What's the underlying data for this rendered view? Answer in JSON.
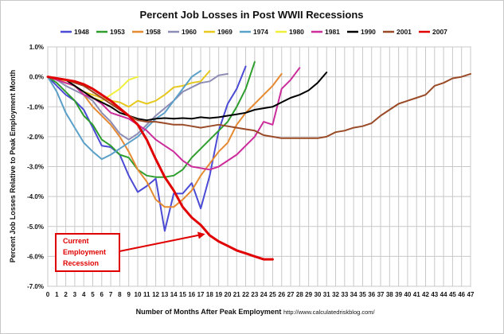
{
  "chart_data": {
    "type": "line",
    "title": "Percent Job Losses in Post WWII Recessions",
    "xlabel": "Number of Months After Peak Employment",
    "ylabel": "Percent Job Losses Relative to Peak Employment Month",
    "source": "http://www.calculatedriskblog.com/",
    "xlim": [
      0,
      47
    ],
    "ylim": [
      -7,
      1
    ],
    "x_ticks": [
      0,
      1,
      2,
      3,
      4,
      5,
      6,
      7,
      8,
      9,
      10,
      11,
      12,
      13,
      14,
      15,
      16,
      17,
      18,
      19,
      20,
      21,
      22,
      23,
      24,
      25,
      26,
      27,
      28,
      29,
      30,
      31,
      32,
      33,
      34,
      35,
      36,
      37,
      38,
      39,
      40,
      41,
      42,
      43,
      44,
      45,
      46,
      47
    ],
    "y_ticks": [
      1,
      0,
      -1,
      -2,
      -3,
      -4,
      -5,
      -6,
      -7
    ],
    "y_tick_labels": [
      "1.0%",
      "0.0%",
      "-1.0%",
      "-2.0%",
      "-3.0%",
      "-4.0%",
      "-5.0%",
      "-6.0%",
      "-7.0%"
    ],
    "grid": true,
    "legend_position": "top",
    "annotation": {
      "lines": [
        "Current",
        "Employment",
        "Recession"
      ],
      "color": "#e00000",
      "arrow_target": {
        "x": 17.5,
        "y": -5.25
      }
    },
    "series": [
      {
        "name": "1948",
        "color": "#4b4bd6",
        "width": 2,
        "values": [
          [
            0,
            0
          ],
          [
            1,
            -0.3
          ],
          [
            2,
            -0.6
          ],
          [
            3,
            -0.8
          ],
          [
            4,
            -1.1
          ],
          [
            5,
            -1.7
          ],
          [
            6,
            -2.3
          ],
          [
            7,
            -2.35
          ],
          [
            8,
            -2.6
          ],
          [
            9,
            -3.3
          ],
          [
            10,
            -3.85
          ],
          [
            11,
            -3.65
          ],
          [
            12,
            -3.4
          ],
          [
            13,
            -5.15
          ],
          [
            14,
            -3.9
          ],
          [
            15,
            -3.9
          ],
          [
            16,
            -3.55
          ],
          [
            17,
            -4.4
          ],
          [
            18,
            -3.3
          ],
          [
            19,
            -1.8
          ],
          [
            20,
            -0.9
          ],
          [
            21,
            -0.4
          ],
          [
            22,
            0.35
          ]
        ]
      },
      {
        "name": "1953",
        "color": "#2e9e2e",
        "width": 2,
        "values": [
          [
            0,
            0
          ],
          [
            1,
            -0.2
          ],
          [
            2,
            -0.5
          ],
          [
            3,
            -0.8
          ],
          [
            4,
            -1.3
          ],
          [
            5,
            -1.6
          ],
          [
            6,
            -2.1
          ],
          [
            7,
            -2.3
          ],
          [
            8,
            -2.6
          ],
          [
            9,
            -2.7
          ],
          [
            10,
            -3.1
          ],
          [
            11,
            -3.3
          ],
          [
            12,
            -3.35
          ],
          [
            13,
            -3.35
          ],
          [
            14,
            -3.3
          ],
          [
            15,
            -3.1
          ],
          [
            16,
            -2.7
          ],
          [
            17,
            -2.4
          ],
          [
            18,
            -2.1
          ],
          [
            19,
            -1.8
          ],
          [
            20,
            -1.5
          ],
          [
            21,
            -1.0
          ],
          [
            22,
            -0.4
          ],
          [
            23,
            0.5
          ]
        ]
      },
      {
        "name": "1958",
        "color": "#e68a32",
        "width": 2,
        "values": [
          [
            0,
            0
          ],
          [
            1,
            -0.1
          ],
          [
            2,
            -0.2
          ],
          [
            3,
            -0.3
          ],
          [
            4,
            -0.6
          ],
          [
            5,
            -1.0
          ],
          [
            6,
            -1.3
          ],
          [
            7,
            -1.6
          ],
          [
            8,
            -2.0
          ],
          [
            9,
            -2.5
          ],
          [
            10,
            -3.1
          ],
          [
            11,
            -3.5
          ],
          [
            12,
            -4.1
          ],
          [
            13,
            -4.35
          ],
          [
            14,
            -4.35
          ],
          [
            15,
            -4.1
          ],
          [
            16,
            -3.8
          ],
          [
            17,
            -3.3
          ],
          [
            18,
            -2.9
          ],
          [
            19,
            -2.5
          ],
          [
            20,
            -2.2
          ],
          [
            21,
            -1.6
          ],
          [
            22,
            -1.2
          ],
          [
            23,
            -0.9
          ],
          [
            24,
            -0.6
          ],
          [
            25,
            -0.3
          ],
          [
            26,
            0.1
          ]
        ]
      },
      {
        "name": "1960",
        "color": "#8c8cb4",
        "width": 2,
        "values": [
          [
            0,
            0
          ],
          [
            1,
            -0.1
          ],
          [
            2,
            -0.3
          ],
          [
            3,
            -0.45
          ],
          [
            4,
            -0.6
          ],
          [
            5,
            -0.8
          ],
          [
            6,
            -1.2
          ],
          [
            7,
            -1.5
          ],
          [
            8,
            -1.9
          ],
          [
            9,
            -2.1
          ],
          [
            10,
            -1.9
          ],
          [
            11,
            -1.6
          ],
          [
            12,
            -1.3
          ],
          [
            13,
            -1.05
          ],
          [
            14,
            -0.8
          ],
          [
            15,
            -0.5
          ],
          [
            16,
            -0.35
          ],
          [
            17,
            -0.2
          ],
          [
            18,
            -0.15
          ],
          [
            19,
            0.05
          ],
          [
            20,
            0.1
          ]
        ]
      },
      {
        "name": "1969",
        "color": "#e6c81e",
        "width": 2,
        "values": [
          [
            0,
            0
          ],
          [
            1,
            -0.05
          ],
          [
            2,
            -0.2
          ],
          [
            3,
            -0.3
          ],
          [
            4,
            -0.5
          ],
          [
            5,
            -0.6
          ],
          [
            6,
            -0.7
          ],
          [
            7,
            -0.8
          ],
          [
            8,
            -0.85
          ],
          [
            9,
            -1.0
          ],
          [
            10,
            -0.8
          ],
          [
            11,
            -0.9
          ],
          [
            12,
            -0.8
          ],
          [
            13,
            -0.6
          ],
          [
            14,
            -0.35
          ],
          [
            15,
            -0.3
          ],
          [
            16,
            -0.2
          ],
          [
            17,
            -0.15
          ],
          [
            18,
            0.2
          ]
        ]
      },
      {
        "name": "1974",
        "color": "#5aa0c8",
        "width": 2,
        "values": [
          [
            0,
            0
          ],
          [
            1,
            -0.5
          ],
          [
            2,
            -1.2
          ],
          [
            3,
            -1.7
          ],
          [
            4,
            -2.2
          ],
          [
            5,
            -2.5
          ],
          [
            6,
            -2.75
          ],
          [
            7,
            -2.6
          ],
          [
            8,
            -2.4
          ],
          [
            9,
            -2.2
          ],
          [
            10,
            -2.0
          ],
          [
            11,
            -1.7
          ],
          [
            12,
            -1.4
          ],
          [
            13,
            -1.2
          ],
          [
            14,
            -0.8
          ],
          [
            15,
            -0.4
          ],
          [
            16,
            0.0
          ],
          [
            17,
            0.2
          ]
        ]
      },
      {
        "name": "1980",
        "color": "#f0f03c",
        "width": 2,
        "values": [
          [
            0,
            0
          ],
          [
            1,
            -0.05
          ],
          [
            2,
            -0.2
          ],
          [
            3,
            -0.3
          ],
          [
            4,
            -0.5
          ],
          [
            5,
            -0.7
          ],
          [
            6,
            -0.8
          ],
          [
            7,
            -0.6
          ],
          [
            8,
            -0.4
          ],
          [
            9,
            -0.1
          ],
          [
            10,
            0.0
          ]
        ]
      },
      {
        "name": "1981",
        "color": "#cc2d9b",
        "width": 2,
        "values": [
          [
            0,
            0
          ],
          [
            1,
            -0.1
          ],
          [
            2,
            -0.2
          ],
          [
            3,
            -0.3
          ],
          [
            4,
            -0.6
          ],
          [
            5,
            -0.7
          ],
          [
            6,
            -0.9
          ],
          [
            7,
            -1.2
          ],
          [
            8,
            -1.3
          ],
          [
            9,
            -1.4
          ],
          [
            10,
            -1.6
          ],
          [
            11,
            -1.8
          ],
          [
            12,
            -2.1
          ],
          [
            13,
            -2.3
          ],
          [
            14,
            -2.5
          ],
          [
            15,
            -2.8
          ],
          [
            16,
            -3.0
          ],
          [
            17,
            -3.05
          ],
          [
            18,
            -3.1
          ],
          [
            19,
            -3.0
          ],
          [
            20,
            -2.8
          ],
          [
            21,
            -2.6
          ],
          [
            22,
            -2.3
          ],
          [
            23,
            -2.0
          ],
          [
            24,
            -1.5
          ],
          [
            25,
            -1.6
          ],
          [
            26,
            -0.4
          ],
          [
            27,
            -0.1
          ],
          [
            28,
            0.3
          ]
        ]
      },
      {
        "name": "1990",
        "color": "#000000",
        "width": 2,
        "values": [
          [
            0,
            0
          ],
          [
            1,
            -0.05
          ],
          [
            2,
            -0.1
          ],
          [
            3,
            -0.3
          ],
          [
            4,
            -0.5
          ],
          [
            5,
            -0.7
          ],
          [
            6,
            -0.85
          ],
          [
            7,
            -1.0
          ],
          [
            8,
            -1.2
          ],
          [
            9,
            -1.3
          ],
          [
            10,
            -1.4
          ],
          [
            11,
            -1.45
          ],
          [
            12,
            -1.4
          ],
          [
            13,
            -1.38
          ],
          [
            14,
            -1.4
          ],
          [
            15,
            -1.38
          ],
          [
            16,
            -1.4
          ],
          [
            17,
            -1.35
          ],
          [
            18,
            -1.38
          ],
          [
            19,
            -1.35
          ],
          [
            20,
            -1.3
          ],
          [
            21,
            -1.25
          ],
          [
            22,
            -1.2
          ],
          [
            23,
            -1.1
          ],
          [
            24,
            -1.05
          ],
          [
            25,
            -1.0
          ],
          [
            26,
            -0.85
          ],
          [
            27,
            -0.7
          ],
          [
            28,
            -0.6
          ],
          [
            29,
            -0.45
          ],
          [
            30,
            -0.2
          ],
          [
            31,
            0.15
          ]
        ]
      },
      {
        "name": "2001",
        "color": "#9a4a26",
        "width": 2,
        "values": [
          [
            0,
            0
          ],
          [
            1,
            -0.05
          ],
          [
            2,
            -0.1
          ],
          [
            3,
            -0.2
          ],
          [
            4,
            -0.3
          ],
          [
            5,
            -0.5
          ],
          [
            6,
            -0.7
          ],
          [
            7,
            -0.9
          ],
          [
            8,
            -1.1
          ],
          [
            9,
            -1.3
          ],
          [
            10,
            -1.45
          ],
          [
            11,
            -1.5
          ],
          [
            12,
            -1.5
          ],
          [
            13,
            -1.55
          ],
          [
            14,
            -1.6
          ],
          [
            15,
            -1.6
          ],
          [
            16,
            -1.65
          ],
          [
            17,
            -1.7
          ],
          [
            18,
            -1.65
          ],
          [
            19,
            -1.6
          ],
          [
            20,
            -1.65
          ],
          [
            21,
            -1.7
          ],
          [
            22,
            -1.75
          ],
          [
            23,
            -1.8
          ],
          [
            24,
            -1.95
          ],
          [
            25,
            -2.0
          ],
          [
            26,
            -2.05
          ],
          [
            27,
            -2.05
          ],
          [
            28,
            -2.05
          ],
          [
            29,
            -2.05
          ],
          [
            30,
            -2.05
          ],
          [
            31,
            -2.0
          ],
          [
            32,
            -1.85
          ],
          [
            33,
            -1.8
          ],
          [
            34,
            -1.7
          ],
          [
            35,
            -1.65
          ],
          [
            36,
            -1.55
          ],
          [
            37,
            -1.3
          ],
          [
            38,
            -1.1
          ],
          [
            39,
            -0.9
          ],
          [
            40,
            -0.8
          ],
          [
            41,
            -0.7
          ],
          [
            42,
            -0.6
          ],
          [
            43,
            -0.3
          ],
          [
            44,
            -0.2
          ],
          [
            45,
            -0.05
          ],
          [
            46,
            0.0
          ],
          [
            47,
            0.1
          ]
        ]
      },
      {
        "name": "2007",
        "color": "#e00000",
        "width": 3,
        "values": [
          [
            0,
            0
          ],
          [
            1,
            -0.05
          ],
          [
            2,
            -0.1
          ],
          [
            3,
            -0.15
          ],
          [
            4,
            -0.25
          ],
          [
            5,
            -0.4
          ],
          [
            6,
            -0.6
          ],
          [
            7,
            -0.8
          ],
          [
            8,
            -1.05
          ],
          [
            9,
            -1.3
          ],
          [
            10,
            -1.6
          ],
          [
            11,
            -2.1
          ],
          [
            12,
            -2.75
          ],
          [
            13,
            -3.35
          ],
          [
            14,
            -3.8
          ],
          [
            15,
            -4.35
          ],
          [
            16,
            -4.7
          ],
          [
            17,
            -4.95
          ],
          [
            18,
            -5.3
          ],
          [
            19,
            -5.5
          ],
          [
            20,
            -5.65
          ],
          [
            21,
            -5.8
          ],
          [
            22,
            -5.9
          ],
          [
            23,
            -6.0
          ],
          [
            24,
            -6.1
          ],
          [
            25,
            -6.1
          ]
        ]
      }
    ]
  }
}
